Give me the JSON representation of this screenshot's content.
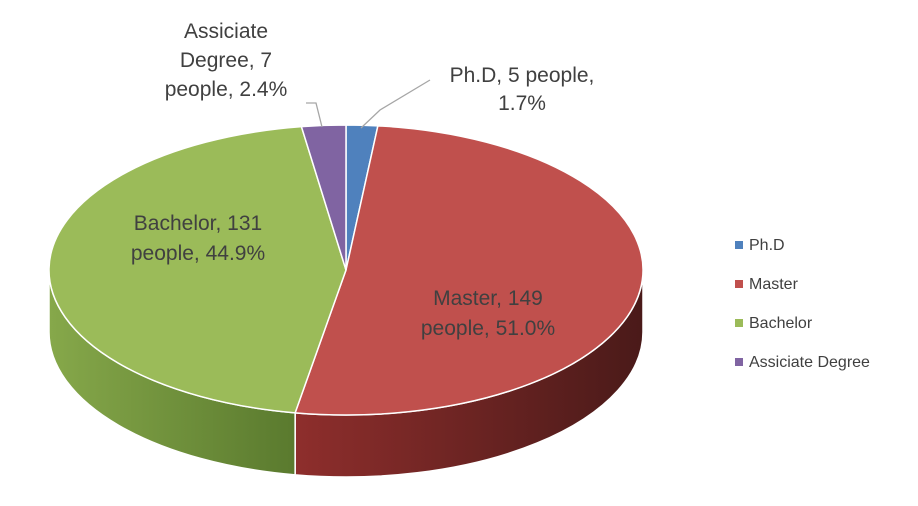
{
  "chart_data": {
    "type": "pie",
    "title": "",
    "categories": [
      "Ph.D",
      "Master",
      "Bachelor",
      "Assiciate Degree"
    ],
    "values": [
      5,
      149,
      131,
      7
    ],
    "percents": [
      1.7,
      51.0,
      44.9,
      2.4
    ],
    "colors": [
      "#4f81bd",
      "#c0504d",
      "#9bbb59",
      "#8064a2"
    ],
    "data_labels": [
      [
        "Ph.D, 5 people,",
        "1.7%"
      ],
      [
        "Master, 149",
        "people, 51.0%"
      ],
      [
        "Bachelor, 131",
        "people, 44.9%"
      ],
      [
        "Assiciate",
        "Degree, 7",
        "people, 2.4%"
      ]
    ],
    "legend": {
      "position": "right",
      "entries": [
        "Ph.D",
        "Master",
        "Bachelor",
        "Assiciate Degree"
      ]
    },
    "style": "3d"
  }
}
